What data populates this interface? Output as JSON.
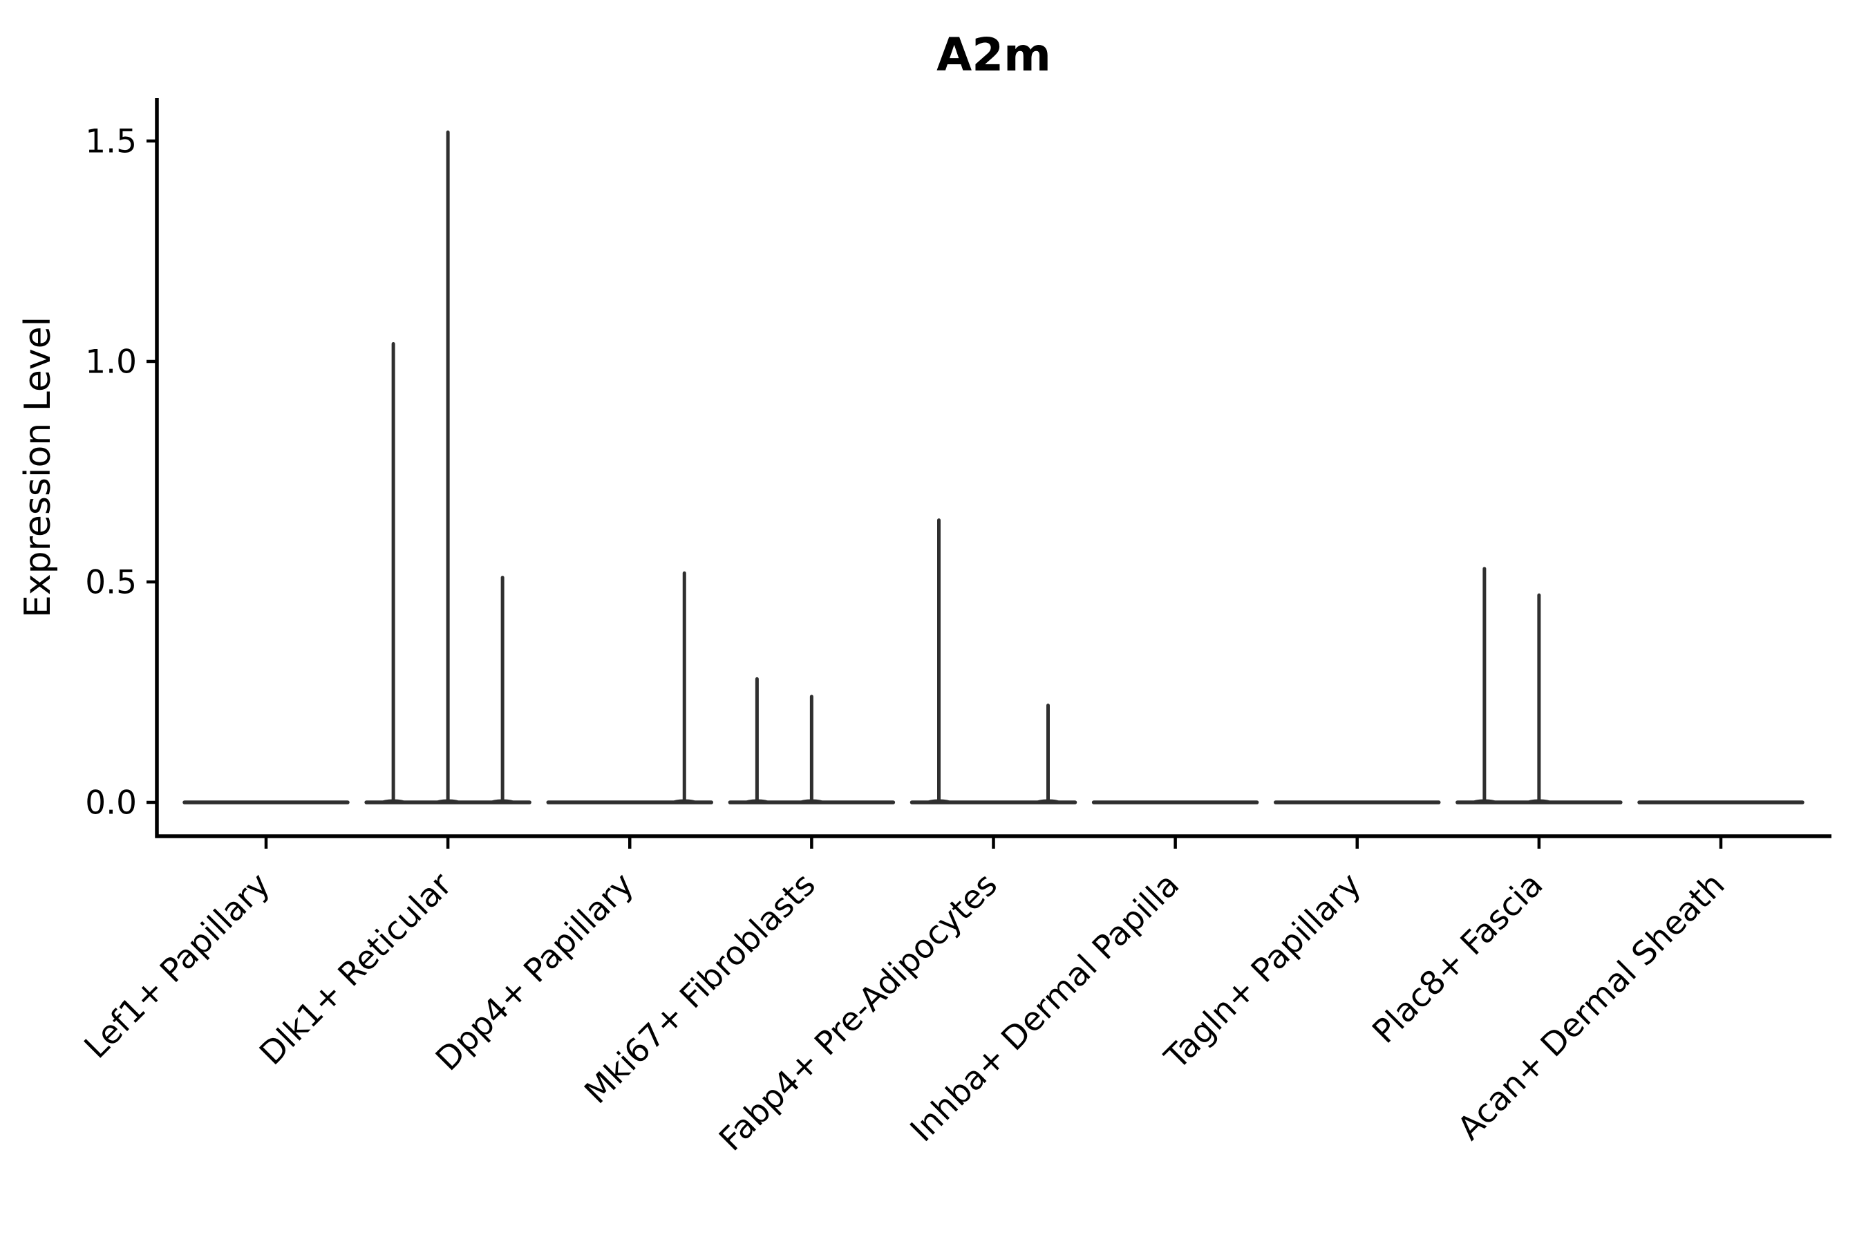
{
  "chart_data": {
    "type": "violin",
    "title": "A2m",
    "ylabel": "Expression Level",
    "xlabel": "",
    "grid": false,
    "legend": null,
    "ylim": [
      -0.08,
      1.6
    ],
    "yticks": [
      {
        "value": 0.0,
        "label": "0.0"
      },
      {
        "value": 0.5,
        "label": "0.5"
      },
      {
        "value": 1.0,
        "label": "1.0"
      },
      {
        "value": 1.5,
        "label": "1.5"
      }
    ],
    "categories": [
      "Lef1+ Papillary",
      "Dlk1+ Reticular",
      "Dpp4+ Papillary",
      "Mki67+ Fibroblasts",
      "Fabp4+ Pre-Adipocytes",
      "Inhba+ Dermal Papilla",
      "Tagln+ Papillary",
      "Plac8+ Fascia",
      "Acan+ Dermal Sheath"
    ],
    "sub_violins_per_category": 3,
    "violins": [
      {
        "category": "Lef1+ Papillary",
        "sub_max_expression": [
          0,
          0,
          0
        ]
      },
      {
        "category": "Dlk1+ Reticular",
        "sub_max_expression": [
          1.04,
          1.52,
          0.51
        ]
      },
      {
        "category": "Dpp4+ Papillary",
        "sub_max_expression": [
          0,
          0,
          0.52
        ]
      },
      {
        "category": "Mki67+ Fibroblasts",
        "sub_max_expression": [
          0.28,
          0.24,
          0
        ]
      },
      {
        "category": "Fabp4+ Pre-Adipocytes",
        "sub_max_expression": [
          0.64,
          0,
          0.22
        ]
      },
      {
        "category": "Inhba+ Dermal Papilla",
        "sub_max_expression": [
          0,
          0,
          0
        ]
      },
      {
        "category": "Tagln+ Papillary",
        "sub_max_expression": [
          0,
          0,
          0
        ]
      },
      {
        "category": "Plac8+ Fascia",
        "sub_max_expression": [
          0.53,
          0.47,
          0
        ]
      },
      {
        "category": "Acan+ Dermal Sheath",
        "sub_max_expression": [
          0,
          0,
          0
        ]
      }
    ],
    "colors": {
      "violin": "#2f2f2f",
      "axis": "#000000",
      "text": "#000000",
      "background": "#ffffff"
    }
  }
}
